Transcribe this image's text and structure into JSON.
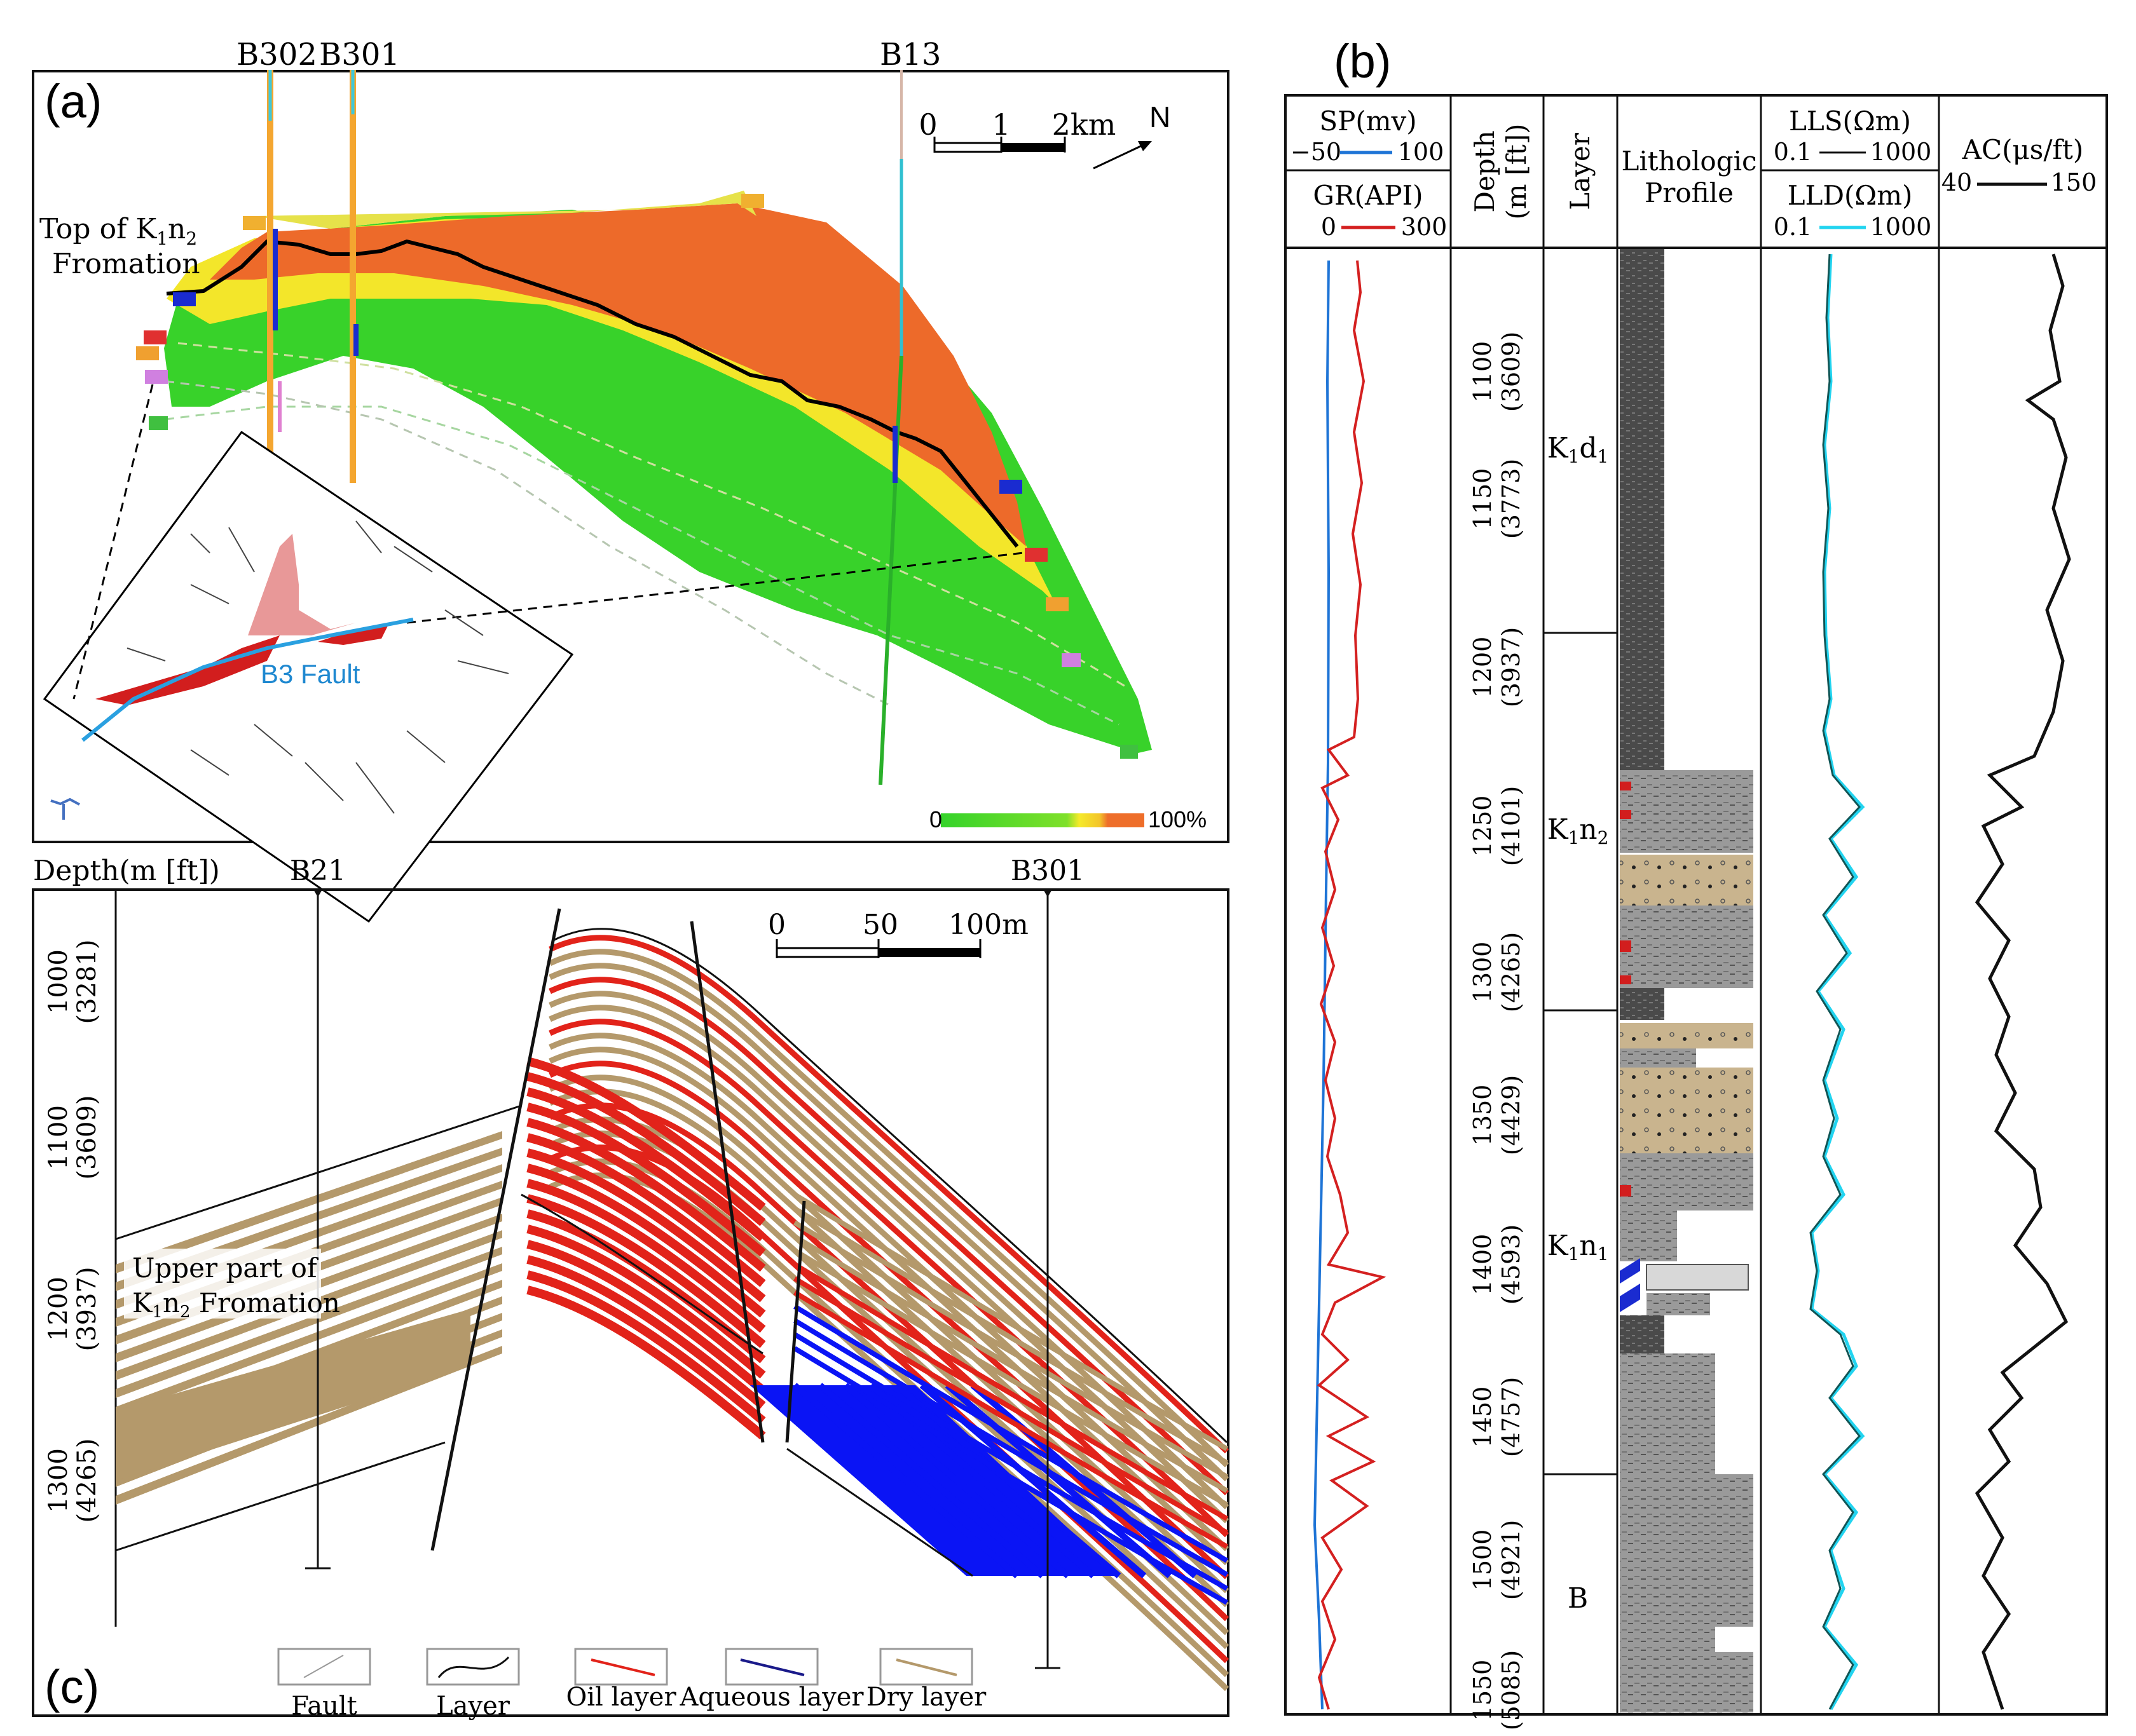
{
  "panel_a": {
    "label": "(a)",
    "wells": [
      "B302",
      "B301",
      "B13"
    ],
    "scale": {
      "ticks": [
        "0",
        "1",
        "2km"
      ]
    },
    "north": "N",
    "top_label_line1": "Top of K",
    "top_label_sub": "1",
    "top_label_n": "n",
    "top_label_sub2": "2",
    "top_label_line2": "Fromation",
    "fault_label": "B3 Fault",
    "colorbar": {
      "min": "0",
      "max": "100%"
    }
  },
  "panel_b": {
    "label": "(b)",
    "headers": {
      "sp": "SP(mv)",
      "sp_min": "−50",
      "sp_max": "100",
      "gr": "GR(API)",
      "gr_min": "0",
      "gr_max": "300",
      "depth": "Depth",
      "depth_unit": "(m [ft])",
      "layer": "Layer",
      "litho1": "Lithologic",
      "litho2": "Profile",
      "lls": "LLS(Ωm)",
      "lls_min": "0.1",
      "lls_max": "1000",
      "lld": "LLD(Ωm)",
      "lld_min": "0.1",
      "lld_max": "1000",
      "ac": "AC(μs/ft)",
      "ac_min": "40",
      "ac_max": "150"
    },
    "depth_ticks": [
      {
        "m": "1100",
        "ft": "(3609)"
      },
      {
        "m": "1150",
        "ft": "(3773)"
      },
      {
        "m": "1200",
        "ft": "(3937)"
      },
      {
        "m": "1250",
        "ft": "(4101)"
      },
      {
        "m": "1300",
        "ft": "(4265)"
      },
      {
        "m": "1350",
        "ft": "(4429)"
      },
      {
        "m": "1400",
        "ft": "(4593)"
      },
      {
        "m": "1450",
        "ft": "(4757)"
      },
      {
        "m": "1500",
        "ft": "(4921)"
      },
      {
        "m": "1550",
        "ft": "(5085)"
      }
    ],
    "layers": [
      {
        "name": "K",
        "sub": "1",
        "tail": "d",
        "sub2": "1"
      },
      {
        "name": "K",
        "sub": "1",
        "tail": "n",
        "sub2": "2"
      },
      {
        "name": "K",
        "sub": "1",
        "tail": "n",
        "sub2": "1"
      },
      {
        "name": "B",
        "sub": "",
        "tail": "",
        "sub2": ""
      }
    ]
  },
  "panel_c": {
    "label": "(c)",
    "depth_title": "Depth(m [ft])",
    "wells": [
      "B21",
      "B301"
    ],
    "scale": {
      "ticks": [
        "0",
        "50",
        "100m"
      ]
    },
    "depth_ticks": [
      {
        "m": "1000",
        "ft": "(3281)"
      },
      {
        "m": "1100",
        "ft": "(3609)"
      },
      {
        "m": "1200",
        "ft": "(3937)"
      },
      {
        "m": "1300",
        "ft": "(4265)"
      }
    ],
    "annotation_line1": "Upper part of",
    "annotation_line2_k": "K",
    "annotation_line2_sub": "1",
    "annotation_line2_n": "n",
    "annotation_line2_sub2": "2",
    "annotation_line2_tail": " Fromation",
    "legend": [
      "Fault",
      "Layer",
      "Oil  layer",
      "Aqueous layer",
      "Dry  layer"
    ]
  },
  "colors": {
    "oil": "#e2231a",
    "aqueous": "#0a14f5",
    "dry": "#b4996b",
    "green": "#3fd72a",
    "yellow": "#f5ea2a",
    "orange": "#ee6e2a",
    "sp": "#1e74d6",
    "gr": "#d42020",
    "lld": "#22d4f0"
  }
}
